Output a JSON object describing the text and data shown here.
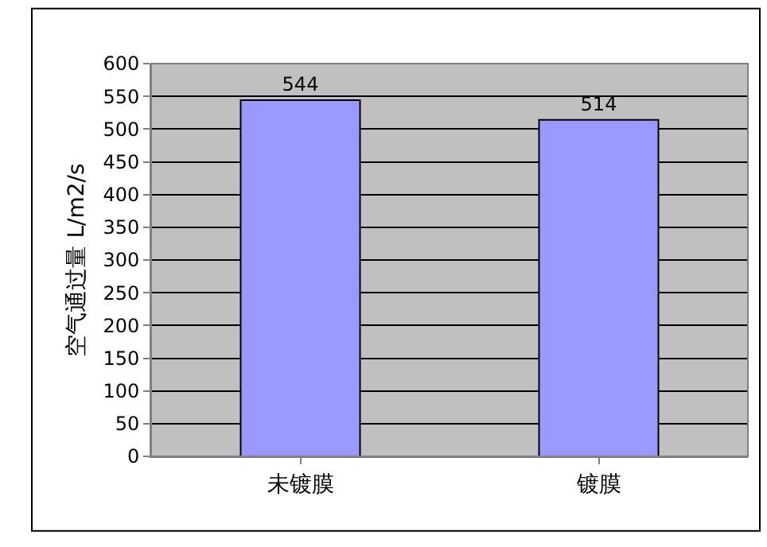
{
  "chart_data": {
    "type": "bar",
    "ylabel": "空气通过量 L/m2/s",
    "categories": [
      "未镀膜",
      "镀膜"
    ],
    "values": [
      544,
      514
    ],
    "color": "#9999ff",
    "ylim": [
      0,
      600
    ],
    "yticks": [
      0,
      50,
      100,
      150,
      200,
      250,
      300,
      350,
      400,
      450,
      500,
      550,
      600
    ],
    "grid": "y",
    "data_labels": true,
    "legend": false
  }
}
